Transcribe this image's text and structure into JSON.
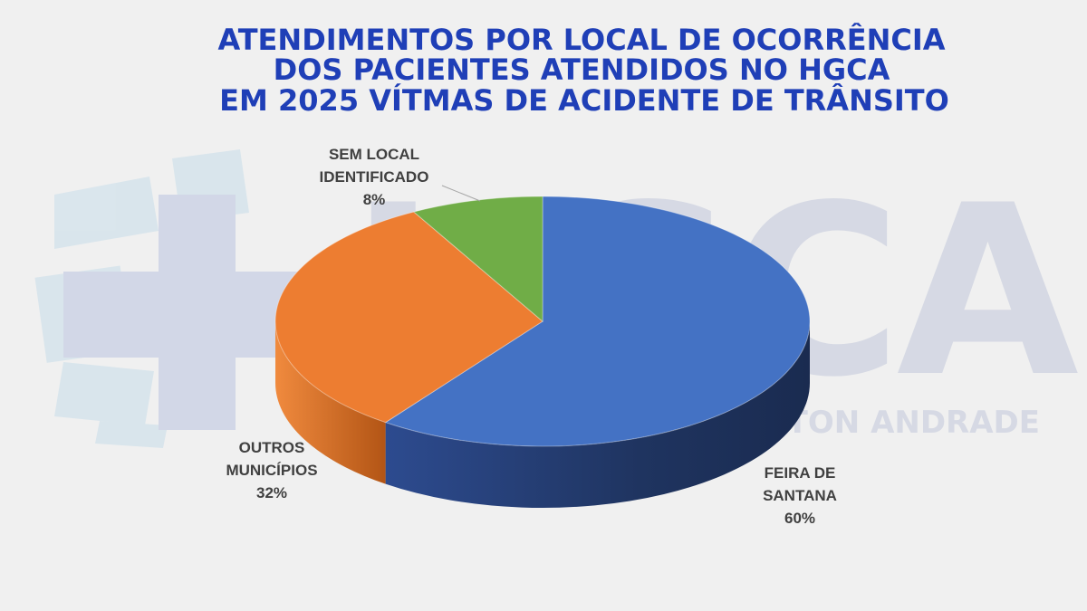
{
  "chart_data": {
    "type": "pie",
    "title_lines": [
      "ATENDIMENTOS POR LOCAL DE OCORRÊNCIA",
      "DOS PACIENTES ATENDIDOS NO HGCA",
      "EM 2025 VÍTMAS DE ACIDENTE DE TRÂNSITO"
    ],
    "slices": [
      {
        "label_lines": [
          "FEIRA DE",
          "SANTANA"
        ],
        "value": 60,
        "value_label": "60%",
        "color": "#4472c4",
        "side_color": "#1f3460"
      },
      {
        "label_lines": [
          "OUTROS",
          "MUNICÍPIOS"
        ],
        "value": 32,
        "value_label": "32%",
        "color": "#ed7d31",
        "side_color": "#b85a1a"
      },
      {
        "label_lines": [
          "SEM LOCAL",
          "IDENTIFICADO"
        ],
        "value": 8,
        "value_label": "8%",
        "color": "#70ad47",
        "side_color": "#4e7d30"
      }
    ],
    "legend": "none"
  },
  "watermark": {
    "logo_text": "HGCA",
    "sub_text": "CLERISTON ANDRADE",
    "color": "#d2d6e2",
    "cross_color": "#c9d3e6"
  }
}
